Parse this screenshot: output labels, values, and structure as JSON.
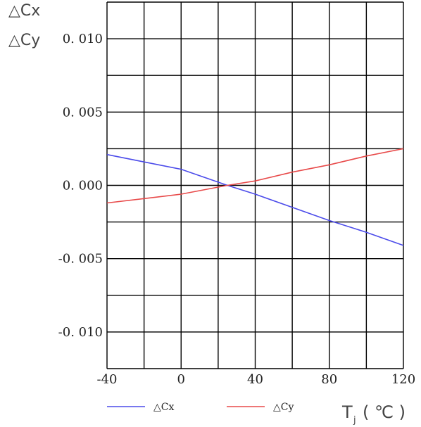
{
  "chart_data": {
    "type": "line",
    "title": "",
    "ylabel_lines": [
      "△Cx",
      "△Cy"
    ],
    "xlabel_main": "T",
    "xlabel_sub": "j",
    "xlabel_unit": "( ℃ )",
    "xlim": [
      -40,
      120
    ],
    "ylim": [
      -0.0125,
      0.0125
    ],
    "x_ticks": [
      -40,
      0,
      40,
      80,
      120
    ],
    "x_tick_labels": [
      "-40",
      "0",
      "40",
      "80",
      "120"
    ],
    "x_grid_step": 20,
    "y_ticks": [
      0.01,
      0.005,
      0.0,
      -0.005,
      -0.01
    ],
    "y_tick_labels": [
      "0. 010",
      "0. 005",
      "0. 000",
      "-0. 005",
      "-0. 010"
    ],
    "y_grid_step": 0.0025,
    "grid": true,
    "legend_position": "bottom",
    "series": [
      {
        "name": "△Cx",
        "color": "#4b4bea",
        "x": [
          -40,
          -20,
          0,
          25,
          40,
          60,
          80,
          100,
          120
        ],
        "y": [
          0.0021,
          0.0016,
          0.0011,
          0.0,
          -0.0006,
          -0.0015,
          -0.0024,
          -0.0032,
          -0.0041
        ]
      },
      {
        "name": "△Cy",
        "color": "#e84a4a",
        "x": [
          -40,
          -20,
          0,
          25,
          40,
          60,
          80,
          100,
          120
        ],
        "y": [
          -0.0012,
          -0.0009,
          -0.0006,
          0.0,
          0.0003,
          0.0009,
          0.0014,
          0.002,
          0.0025
        ]
      }
    ]
  }
}
